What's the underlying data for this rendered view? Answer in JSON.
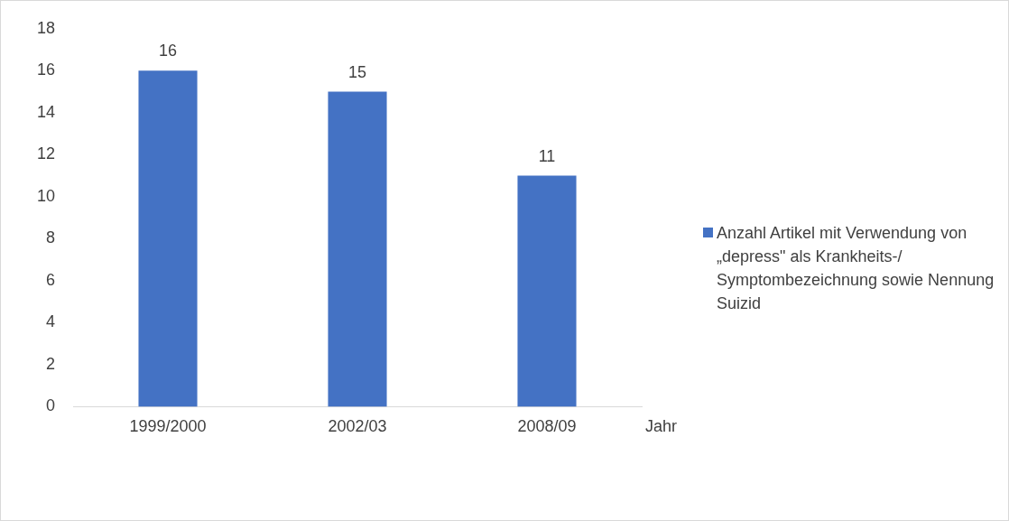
{
  "chart_data": {
    "type": "bar",
    "xlabel": "Jahr",
    "categories": [
      "1999/2000",
      "2002/03",
      "2008/09"
    ],
    "series": [
      {
        "name": "Anzahl Artikel mit Verwendung von „depress\" als Krankheits-/ Symptombezeichnung sowie Nennung Suizid",
        "color": "#4472c4",
        "values": [
          16,
          15,
          11
        ]
      }
    ],
    "ylim": [
      0,
      18
    ],
    "yticks": [
      0,
      2,
      4,
      6,
      8,
      10,
      12,
      14,
      16,
      18
    ],
    "data_labels": true,
    "grid": false,
    "legend": "right"
  }
}
